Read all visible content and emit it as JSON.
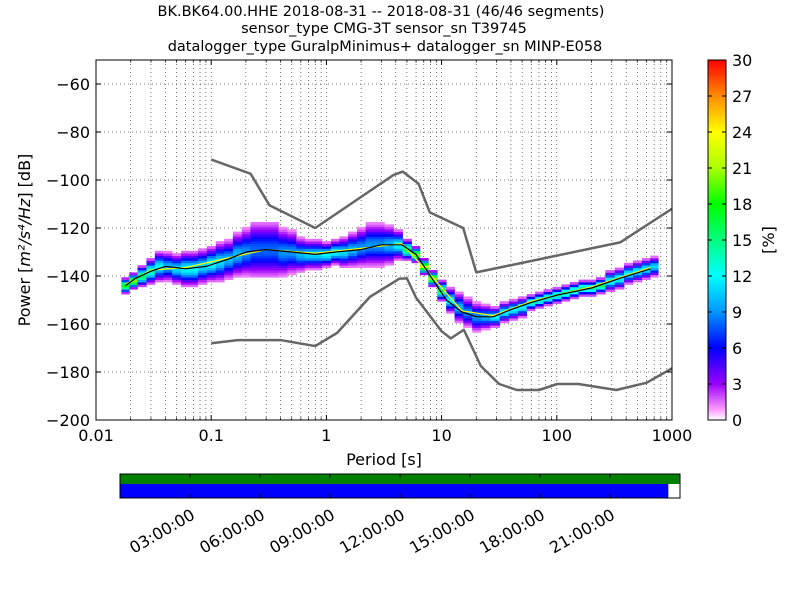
{
  "chart_data": {
    "type": "heatmap",
    "title_lines": [
      "BK.BK64.00.HHE   2018-08-31 -- 2018-08-31  (46/46 segments)",
      "sensor_type CMG-3T sensor_sn T39745",
      "datalogger_type GuralpMinimus+ datalogger_sn MINP-E058"
    ],
    "xlabel": "Period [s]",
    "ylabel_text": "Power [",
    "ylabel_unit_text": "m²/s⁴/Hz",
    "ylabel_end": "] [dB]",
    "xscale": "log",
    "xlim": [
      0.01,
      1000
    ],
    "ylim": [
      -200,
      -50
    ],
    "x_ticks": [
      {
        "value": 0.01,
        "label": "0.01"
      },
      {
        "value": 0.1,
        "label": "0.1"
      },
      {
        "value": 1,
        "label": "1"
      },
      {
        "value": 10,
        "label": "10"
      },
      {
        "value": 100,
        "label": "100"
      },
      {
        "value": 1000,
        "label": "1000"
      }
    ],
    "y_ticks": [
      {
        "value": -60,
        "label": "−60"
      },
      {
        "value": -80,
        "label": "−80"
      },
      {
        "value": -100,
        "label": "−100"
      },
      {
        "value": -120,
        "label": "−120"
      },
      {
        "value": -140,
        "label": "−140"
      },
      {
        "value": -160,
        "label": "−160"
      },
      {
        "value": -180,
        "label": "−180"
      },
      {
        "value": -200,
        "label": "−200"
      }
    ],
    "grid": true,
    "colorbar": {
      "label": "[%]",
      "range": [
        0,
        30
      ],
      "ticks": [
        {
          "value": 0,
          "label": "0"
        },
        {
          "value": 3,
          "label": "3"
        },
        {
          "value": 6,
          "label": "6"
        },
        {
          "value": 9,
          "label": "9"
        },
        {
          "value": 12,
          "label": "12"
        },
        {
          "value": 15,
          "label": "15"
        },
        {
          "value": 18,
          "label": "18"
        },
        {
          "value": 21,
          "label": "21"
        },
        {
          "value": 24,
          "label": "24"
        },
        {
          "value": 27,
          "label": "27"
        },
        {
          "value": 30,
          "label": "30"
        }
      ]
    },
    "nhnm": {
      "name": "NHNM",
      "color": "#666666",
      "points": [
        [
          0.1,
          -91.5
        ],
        [
          0.22,
          -97.4
        ],
        [
          0.32,
          -110.5
        ],
        [
          0.8,
          -120
        ],
        [
          3.8,
          -98
        ],
        [
          4.6,
          -96.5
        ],
        [
          6.3,
          -101.5
        ],
        [
          7.9,
          -113.5
        ],
        [
          15.4,
          -120
        ],
        [
          20,
          -138.5
        ],
        [
          354.8,
          -126
        ],
        [
          1000,
          -112
        ]
      ]
    },
    "nlnm": {
      "name": "NLNM",
      "color": "#666666",
      "points": [
        [
          0.1,
          -168
        ],
        [
          0.17,
          -166.7
        ],
        [
          0.4,
          -166.7
        ],
        [
          0.8,
          -169.2
        ],
        [
          1.24,
          -163.7
        ],
        [
          2.4,
          -148.6
        ],
        [
          4.3,
          -141.1
        ],
        [
          5,
          -141
        ],
        [
          6,
          -149
        ],
        [
          10,
          -163
        ],
        [
          12,
          -166
        ],
        [
          15.6,
          -162.4
        ],
        [
          21.9,
          -177.5
        ],
        [
          31.6,
          -185
        ],
        [
          45,
          -187.5
        ],
        [
          70,
          -187.5
        ],
        [
          101,
          -185
        ],
        [
          154,
          -185
        ],
        [
          328,
          -187.5
        ],
        [
          600,
          -184.5
        ],
        [
          1000,
          -178.5
        ]
      ]
    },
    "mode_series": {
      "name": "mode",
      "color": "#000000",
      "points": [
        [
          0.018,
          -144
        ],
        [
          0.022,
          -141
        ],
        [
          0.03,
          -138
        ],
        [
          0.04,
          -136
        ],
        [
          0.06,
          -137
        ],
        [
          0.09,
          -136
        ],
        [
          0.14,
          -133
        ],
        [
          0.2,
          -130
        ],
        [
          0.3,
          -129
        ],
        [
          0.5,
          -130
        ],
        [
          0.8,
          -131
        ],
        [
          1.2,
          -130
        ],
        [
          2,
          -129
        ],
        [
          3,
          -127
        ],
        [
          4.5,
          -127
        ],
        [
          6,
          -131
        ],
        [
          8,
          -140
        ],
        [
          11,
          -150
        ],
        [
          15,
          -155
        ],
        [
          20,
          -157
        ],
        [
          28,
          -157
        ],
        [
          40,
          -154
        ],
        [
          60,
          -151
        ],
        [
          100,
          -148
        ],
        [
          200,
          -145
        ],
        [
          350,
          -141
        ],
        [
          650,
          -137
        ]
      ]
    },
    "mean_series": {
      "name": "mean",
      "color": "#ffff00",
      "points": [
        [
          0.018,
          -143.5
        ],
        [
          0.03,
          -137.5
        ],
        [
          0.06,
          -136.5
        ],
        [
          0.14,
          -132.5
        ],
        [
          0.3,
          -129
        ],
        [
          0.8,
          -130.5
        ],
        [
          2,
          -128.5
        ],
        [
          4.5,
          -126.5
        ],
        [
          8,
          -139.5
        ],
        [
          15,
          -154.5
        ],
        [
          28,
          -156.5
        ],
        [
          60,
          -150.5
        ],
        [
          200,
          -144.5
        ],
        [
          650,
          -136.5
        ]
      ]
    },
    "pdf_bins": [
      {
        "p": 0.018,
        "center": -144,
        "width": 3,
        "peak": 18
      },
      {
        "p": 0.021,
        "center": -142,
        "width": 3,
        "peak": 20
      },
      {
        "p": 0.025,
        "center": -140,
        "width": 4,
        "peak": 16
      },
      {
        "p": 0.03,
        "center": -138,
        "width": 5,
        "peak": 14
      },
      {
        "p": 0.035,
        "center": -136,
        "width": 6,
        "peak": 12
      },
      {
        "p": 0.042,
        "center": -136,
        "width": 6,
        "peak": 10
      },
      {
        "p": 0.05,
        "center": -137,
        "width": 6,
        "peak": 11
      },
      {
        "p": 0.06,
        "center": -137,
        "width": 7,
        "peak": 12
      },
      {
        "p": 0.07,
        "center": -137,
        "width": 7,
        "peak": 12
      },
      {
        "p": 0.084,
        "center": -136,
        "width": 7,
        "peak": 11
      },
      {
        "p": 0.1,
        "center": -135,
        "width": 7,
        "peak": 12
      },
      {
        "p": 0.12,
        "center": -134,
        "width": 8,
        "peak": 11
      },
      {
        "p": 0.14,
        "center": -133,
        "width": 8,
        "peak": 10
      },
      {
        "p": 0.17,
        "center": -131,
        "width": 9,
        "peak": 10
      },
      {
        "p": 0.2,
        "center": -130,
        "width": 10,
        "peak": 9
      },
      {
        "p": 0.24,
        "center": -129,
        "width": 12,
        "peak": 8
      },
      {
        "p": 0.29,
        "center": -129,
        "width": 12,
        "peak": 8
      },
      {
        "p": 0.35,
        "center": -129,
        "width": 12,
        "peak": 8
      },
      {
        "p": 0.42,
        "center": -130,
        "width": 10,
        "peak": 9
      },
      {
        "p": 0.5,
        "center": -130,
        "width": 9,
        "peak": 9
      },
      {
        "p": 0.6,
        "center": -131,
        "width": 7,
        "peak": 10
      },
      {
        "p": 0.7,
        "center": -131,
        "width": 6,
        "peak": 11
      },
      {
        "p": 0.84,
        "center": -131,
        "width": 6,
        "peak": 11
      },
      {
        "p": 1.0,
        "center": -131,
        "width": 5,
        "peak": 12
      },
      {
        "p": 1.2,
        "center": -130,
        "width": 5,
        "peak": 12
      },
      {
        "p": 1.4,
        "center": -130,
        "width": 6,
        "peak": 11
      },
      {
        "p": 1.7,
        "center": -129,
        "width": 7,
        "peak": 10
      },
      {
        "p": 2.0,
        "center": -128,
        "width": 8,
        "peak": 9
      },
      {
        "p": 2.4,
        "center": -127,
        "width": 9,
        "peak": 9
      },
      {
        "p": 2.9,
        "center": -127,
        "width": 9,
        "peak": 9
      },
      {
        "p": 3.5,
        "center": -127,
        "width": 8,
        "peak": 10
      },
      {
        "p": 4.2,
        "center": -127,
        "width": 6,
        "peak": 12
      },
      {
        "p": 5.0,
        "center": -129,
        "width": 4,
        "peak": 16
      },
      {
        "p": 6.0,
        "center": -131,
        "width": 3,
        "peak": 20
      },
      {
        "p": 7.0,
        "center": -136,
        "width": 3,
        "peak": 22
      },
      {
        "p": 8.4,
        "center": -141,
        "width": 3,
        "peak": 20
      },
      {
        "p": 10,
        "center": -146,
        "width": 4,
        "peak": 16
      },
      {
        "p": 12,
        "center": -150,
        "width": 5,
        "peak": 12
      },
      {
        "p": 14,
        "center": -153,
        "width": 6,
        "peak": 10
      },
      {
        "p": 17,
        "center": -155,
        "width": 6,
        "peak": 9
      },
      {
        "p": 20,
        "center": -157,
        "width": 6,
        "peak": 9
      },
      {
        "p": 24,
        "center": -157,
        "width": 5,
        "peak": 10
      },
      {
        "p": 29,
        "center": -157,
        "width": 4,
        "peak": 12
      },
      {
        "p": 35,
        "center": -155,
        "width": 4,
        "peak": 12
      },
      {
        "p": 42,
        "center": -154,
        "width": 4,
        "peak": 12
      },
      {
        "p": 50,
        "center": -153,
        "width": 4,
        "peak": 12
      },
      {
        "p": 60,
        "center": -151,
        "width": 3,
        "peak": 14
      },
      {
        "p": 70,
        "center": -150,
        "width": 3,
        "peak": 14
      },
      {
        "p": 84,
        "center": -149,
        "width": 3,
        "peak": 14
      },
      {
        "p": 100,
        "center": -148,
        "width": 3,
        "peak": 14
      },
      {
        "p": 120,
        "center": -147,
        "width": 3,
        "peak": 15
      },
      {
        "p": 140,
        "center": -146,
        "width": 3,
        "peak": 15
      },
      {
        "p": 170,
        "center": -145,
        "width": 3,
        "peak": 15
      },
      {
        "p": 200,
        "center": -145,
        "width": 3,
        "peak": 15
      },
      {
        "p": 240,
        "center": -144,
        "width": 3,
        "peak": 16
      },
      {
        "p": 290,
        "center": -142,
        "width": 4,
        "peak": 13
      },
      {
        "p": 350,
        "center": -141,
        "width": 4,
        "peak": 13
      },
      {
        "p": 420,
        "center": -139,
        "width": 4,
        "peak": 12
      },
      {
        "p": 500,
        "center": -138,
        "width": 4,
        "peak": 12
      },
      {
        "p": 600,
        "center": -137,
        "width": 4,
        "peak": 12
      },
      {
        "p": 700,
        "center": -136,
        "width": 4,
        "peak": 11
      }
    ],
    "coverage": {
      "time_labels": [
        "03:00:00",
        "06:00:00",
        "09:00:00",
        "12:00:00",
        "15:00:00",
        "18:00:00",
        "21:00:00"
      ],
      "time_hours": [
        3,
        6,
        9,
        12,
        15,
        18,
        21
      ],
      "range_hours": [
        0,
        24
      ],
      "data_bar": {
        "color": "#008000",
        "start": 0,
        "end": 24
      },
      "psd_bar": {
        "color": "#0000ff",
        "start": 0,
        "end": 23.5
      }
    }
  }
}
